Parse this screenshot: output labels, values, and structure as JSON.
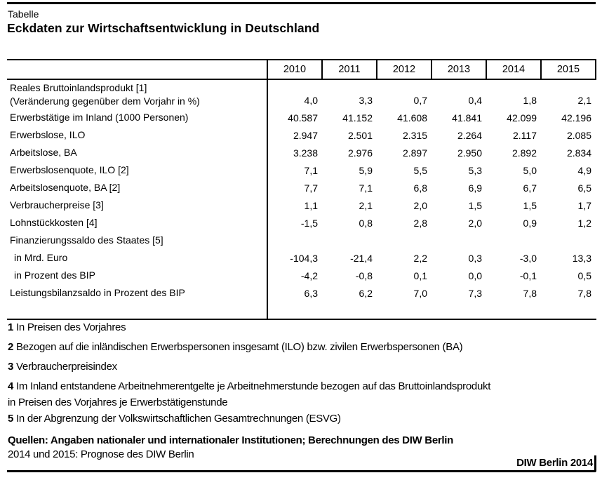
{
  "page": {
    "kicker": "Tabelle",
    "title": "Eckdaten zur Wirtschaftsentwicklung in Deutschland"
  },
  "colors": {
    "background": "#ffffff",
    "text": "#000000",
    "border": "#000000"
  },
  "table": {
    "columns": [
      "2010",
      "2011",
      "2012",
      "2013",
      "2014",
      "2015"
    ],
    "rows": [
      {
        "label": "Reales Bruttoinlandsprodukt [1]",
        "label2": "(Veränderung gegenüber dem Vorjahr in %)",
        "indent": false,
        "values": [
          "4,0",
          "3,3",
          "0,7",
          "0,4",
          "1,8",
          "2,1"
        ]
      },
      {
        "label": "Erwerbstätige im Inland (1000 Personen)",
        "indent": false,
        "values": [
          "40.587",
          "41.152",
          "41.608",
          "41.841",
          "42.099",
          "42.196"
        ]
      },
      {
        "label": "Erwerbslose, ILO",
        "indent": false,
        "values": [
          "2.947",
          "2.501",
          "2.315",
          "2.264",
          "2.117",
          "2.085"
        ]
      },
      {
        "label": "Arbeitslose, BA",
        "indent": false,
        "values": [
          "3.238",
          "2.976",
          "2.897",
          "2.950",
          "2.892",
          "2.834"
        ]
      },
      {
        "label": "Erwerbslosenquote, ILO [2]",
        "indent": false,
        "values": [
          "7,1",
          "5,9",
          "5,5",
          "5,3",
          "5,0",
          "4,9"
        ]
      },
      {
        "label": "Arbeitslosenquote, BA [2]",
        "indent": false,
        "values": [
          "7,7",
          "7,1",
          "6,8",
          "6,9",
          "6,7",
          "6,5"
        ]
      },
      {
        "label": "Verbraucherpreise [3]",
        "indent": false,
        "values": [
          "1,1",
          "2,1",
          "2,0",
          "1,5",
          "1,5",
          "1,7"
        ]
      },
      {
        "label": "Lohnstückkosten [4]",
        "indent": false,
        "values": [
          "-1,5",
          "0,8",
          "2,8",
          "2,0",
          "0,9",
          "1,2"
        ]
      },
      {
        "label": "Finanzierungssaldo des Staates [5]",
        "indent": false,
        "values": [
          "",
          "",
          "",
          "",
          "",
          ""
        ]
      },
      {
        "label": "in Mrd. Euro",
        "indent": true,
        "values": [
          "-104,3",
          "-21,4",
          "2,2",
          "0,3",
          "-3,0",
          "13,3"
        ]
      },
      {
        "label": "in Prozent des BIP",
        "indent": true,
        "values": [
          "-4,2",
          "-0,8",
          "0,1",
          "0,0",
          "-0,1",
          "0,5"
        ]
      },
      {
        "label": "Leistungsbilanzsaldo in Prozent des BIP",
        "indent": false,
        "values": [
          "6,3",
          "6,2",
          "7,0",
          "7,3",
          "7,8",
          "7,8"
        ]
      }
    ]
  },
  "footnotes": [
    {
      "num": "1",
      "text": "In Preisen des Vorjahres",
      "tight": false
    },
    {
      "num": "2",
      "text": "Bezogen auf die inländischen Erwerbspersonen insgesamt (ILO) bzw. zivilen Erwerbspersonen (BA)",
      "tight": false
    },
    {
      "num": "3",
      "text": "Verbraucherpreisindex",
      "tight": false
    },
    {
      "num": "4",
      "text": "Im Inland entstandene Arbeitnehmerentgelte je Arbeitnehmerstunde bezogen auf das Bruttoinlandsprodukt",
      "tight": true
    },
    {
      "num": "",
      "text": "in Preisen des Vorjahres je Erwerbstätigenstunde",
      "tight": true
    },
    {
      "num": "5",
      "text": "In der Abgrenzung der Volkswirtschaftlichen Gesamtrechnungen (ESVG)",
      "tight": true
    }
  ],
  "sources": {
    "line1": "Quellen: Angaben nationaler und internationaler Institutionen; Berechnungen des DIW Berlin",
    "line2": "2014 und 2015: Prognose des DIW Berlin",
    "credit": "DIW Berlin 2014"
  }
}
